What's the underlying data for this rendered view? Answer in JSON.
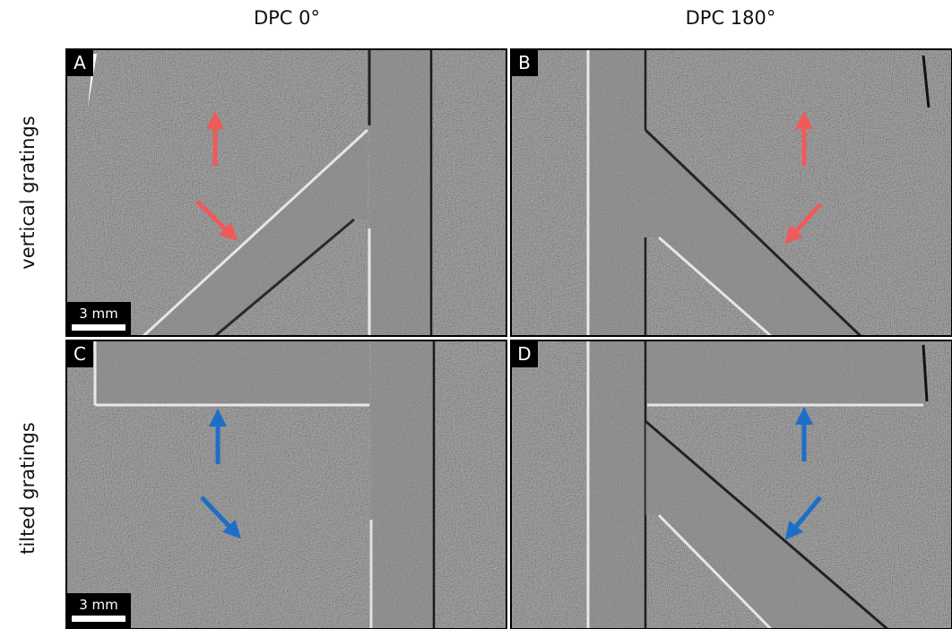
{
  "column_titles": [
    "DPC 0°",
    "DPC 180°"
  ],
  "row_labels": [
    "vertical gratings",
    "tilted gratings"
  ],
  "panels": [
    {
      "label": "A",
      "scale_bar": "3 mm"
    },
    {
      "label": "B"
    },
    {
      "label": "C",
      "scale_bar": "3 mm"
    },
    {
      "label": "D"
    }
  ]
}
